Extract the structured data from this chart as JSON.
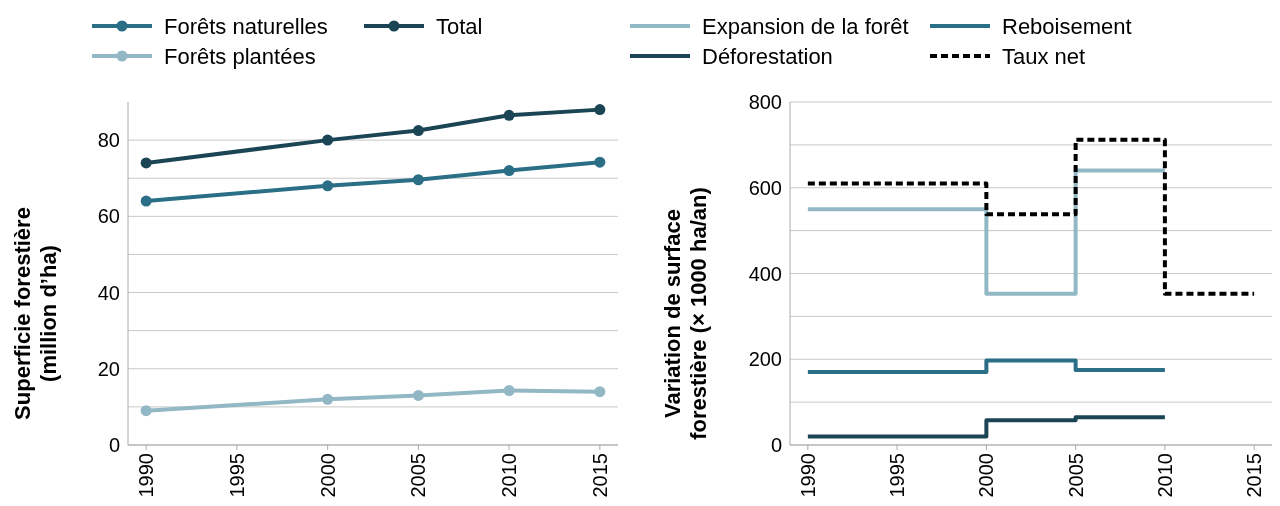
{
  "chart_data": [
    {
      "type": "line",
      "ylabel": "Superficie forestière\n(million d’ha)",
      "x": [
        1990,
        2000,
        2005,
        2010,
        2015
      ],
      "xlim": [
        1989,
        2016
      ],
      "xticks": [
        1990,
        1995,
        2000,
        2005,
        2010,
        2015
      ],
      "ylim": [
        0,
        90
      ],
      "yticks": [
        0,
        {
          "value": 10,
          "label": null
        },
        20,
        {
          "value": 30,
          "label": null
        },
        40,
        {
          "value": 50,
          "label": null
        },
        60,
        {
          "value": 70,
          "label": null
        },
        80
      ],
      "grid": "y",
      "legend": "top",
      "marker": "circle",
      "series": [
        {
          "name": "Forêts naturelles",
          "color": "#2a6f86",
          "values": [
            64,
            68,
            69.6,
            72,
            74.2
          ]
        },
        {
          "name": "Forêts plantées",
          "color": "#93b8c5",
          "values": [
            9,
            12,
            13,
            14.3,
            14
          ]
        },
        {
          "name": "Total",
          "color": "#1b4555",
          "values": [
            74,
            80,
            82.5,
            86.5,
            88
          ]
        }
      ]
    },
    {
      "type": "step",
      "ylabel": "Variation de surface\nforestière (× 1000 ha/an)",
      "xlim": [
        1989,
        2016
      ],
      "xticks": [
        1990,
        1995,
        2000,
        2005,
        2010,
        2015
      ],
      "ylim": [
        0,
        800
      ],
      "yticks": [
        0,
        {
          "value": 100,
          "label": null
        },
        200,
        {
          "value": 300,
          "label": null
        },
        400,
        {
          "value": 500,
          "label": null
        },
        600,
        {
          "value": 700,
          "label": null
        },
        800
      ],
      "grid": "y",
      "legend": "top",
      "marker": "none",
      "series": [
        {
          "name": "Expansion de la forêt",
          "color": "#93b8c5",
          "x": [
            1990,
            2000,
            2005,
            2010
          ],
          "values": [
            550,
            353,
            640,
            640
          ]
        },
        {
          "name": "Déforestation",
          "color": "#1b4555",
          "x": [
            1990,
            2000,
            2005,
            2010
          ],
          "values": [
            20,
            58,
            65,
            65
          ]
        },
        {
          "name": "Reboisement",
          "color": "#2a6f86",
          "x": [
            1990,
            2000,
            2005,
            2010
          ],
          "values": [
            170,
            197,
            175,
            175
          ]
        },
        {
          "name": "Taux net",
          "color": "#000000",
          "line_style": "dashed",
          "x": [
            1990,
            2000,
            2005,
            2010,
            2015
          ],
          "values": [
            610,
            538,
            712,
            353,
            353
          ]
        }
      ]
    }
  ]
}
